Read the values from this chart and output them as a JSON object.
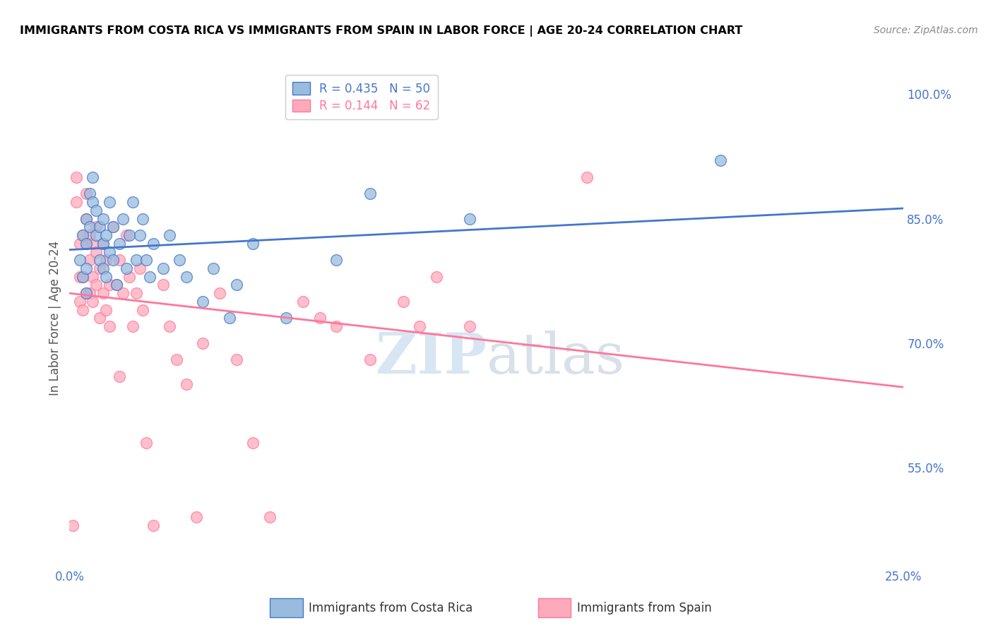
{
  "title": "IMMIGRANTS FROM COSTA RICA VS IMMIGRANTS FROM SPAIN IN LABOR FORCE | AGE 20-24 CORRELATION CHART",
  "source": "Source: ZipAtlas.com",
  "ylabel": "In Labor Force | Age 20-24",
  "xmin": 0.0,
  "xmax": 0.25,
  "ymin": 0.43,
  "ymax": 1.03,
  "x_tick_positions": [
    0.0,
    0.05,
    0.1,
    0.15,
    0.2,
    0.25
  ],
  "x_tick_labels": [
    "0.0%",
    "",
    "",
    "",
    "",
    "25.0%"
  ],
  "y_tick_positions": [
    0.55,
    0.7,
    0.85,
    1.0
  ],
  "y_tick_labels": [
    "55.0%",
    "70.0%",
    "85.0%",
    "100.0%"
  ],
  "blue_R": "0.435",
  "blue_N": "50",
  "pink_R": "0.144",
  "pink_N": "62",
  "blue_color": "#99BBDD",
  "pink_color": "#FFAABC",
  "blue_line_color": "#4477CC",
  "pink_line_color": "#FF7799",
  "legend1_label": "Immigrants from Costa Rica",
  "legend2_label": "Immigrants from Spain",
  "blue_scatter_x": [
    0.003,
    0.004,
    0.004,
    0.005,
    0.005,
    0.005,
    0.005,
    0.006,
    0.006,
    0.007,
    0.007,
    0.008,
    0.008,
    0.009,
    0.009,
    0.01,
    0.01,
    0.01,
    0.011,
    0.011,
    0.012,
    0.012,
    0.013,
    0.013,
    0.014,
    0.015,
    0.016,
    0.017,
    0.018,
    0.019,
    0.02,
    0.021,
    0.022,
    0.023,
    0.024,
    0.025,
    0.028,
    0.03,
    0.033,
    0.035,
    0.04,
    0.043,
    0.048,
    0.05,
    0.055,
    0.065,
    0.08,
    0.09,
    0.12,
    0.195
  ],
  "blue_scatter_y": [
    0.8,
    0.83,
    0.78,
    0.85,
    0.82,
    0.79,
    0.76,
    0.88,
    0.84,
    0.9,
    0.87,
    0.83,
    0.86,
    0.8,
    0.84,
    0.82,
    0.79,
    0.85,
    0.83,
    0.78,
    0.87,
    0.81,
    0.84,
    0.8,
    0.77,
    0.82,
    0.85,
    0.79,
    0.83,
    0.87,
    0.8,
    0.83,
    0.85,
    0.8,
    0.78,
    0.82,
    0.79,
    0.83,
    0.8,
    0.78,
    0.75,
    0.79,
    0.73,
    0.77,
    0.82,
    0.73,
    0.8,
    0.88,
    0.85,
    0.92
  ],
  "pink_scatter_x": [
    0.001,
    0.002,
    0.002,
    0.003,
    0.003,
    0.003,
    0.004,
    0.004,
    0.004,
    0.005,
    0.005,
    0.005,
    0.005,
    0.006,
    0.006,
    0.006,
    0.007,
    0.007,
    0.007,
    0.008,
    0.008,
    0.008,
    0.009,
    0.009,
    0.01,
    0.01,
    0.011,
    0.011,
    0.012,
    0.012,
    0.013,
    0.014,
    0.015,
    0.015,
    0.016,
    0.017,
    0.018,
    0.019,
    0.02,
    0.021,
    0.022,
    0.023,
    0.025,
    0.028,
    0.03,
    0.032,
    0.035,
    0.038,
    0.04,
    0.045,
    0.05,
    0.055,
    0.06,
    0.07,
    0.075,
    0.08,
    0.09,
    0.1,
    0.105,
    0.11,
    0.12,
    0.155
  ],
  "pink_scatter_y": [
    0.48,
    0.87,
    0.9,
    0.78,
    0.82,
    0.75,
    0.83,
    0.78,
    0.74,
    0.76,
    0.82,
    0.85,
    0.88,
    0.83,
    0.8,
    0.76,
    0.82,
    0.78,
    0.75,
    0.81,
    0.77,
    0.84,
    0.79,
    0.73,
    0.82,
    0.76,
    0.8,
    0.74,
    0.77,
    0.72,
    0.84,
    0.77,
    0.66,
    0.8,
    0.76,
    0.83,
    0.78,
    0.72,
    0.76,
    0.79,
    0.74,
    0.58,
    0.48,
    0.77,
    0.72,
    0.68,
    0.65,
    0.49,
    0.7,
    0.76,
    0.68,
    0.58,
    0.49,
    0.75,
    0.73,
    0.72,
    0.68,
    0.75,
    0.72,
    0.78,
    0.72,
    0.9
  ],
  "watermark_zip": "ZIP",
  "watermark_atlas": "atlas",
  "grid_color": "#CCCCCC"
}
